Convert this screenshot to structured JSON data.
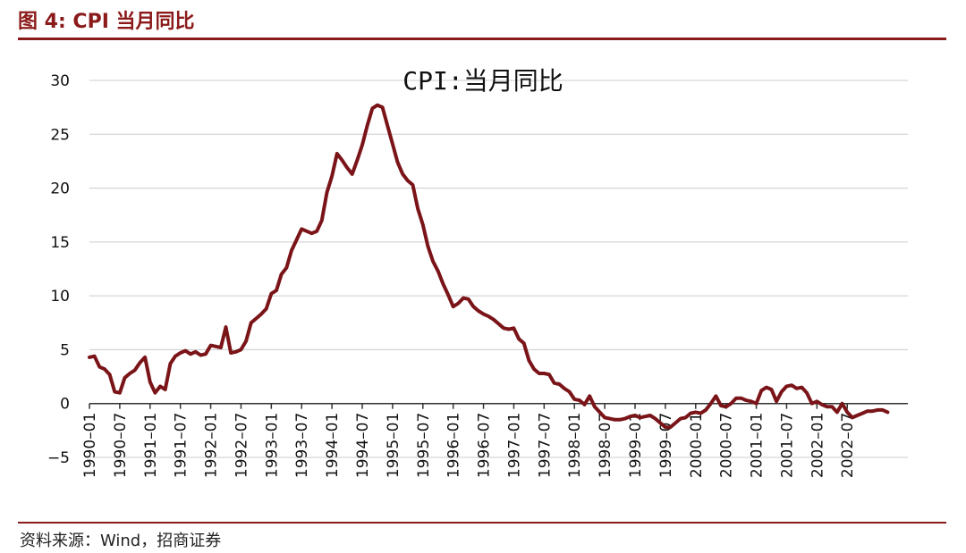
{
  "figure_title": "图 4:  CPI 当月同比",
  "source": "资料来源：Wind，招商证券",
  "colors": {
    "accent": "#8b1a1a",
    "line": "#7a1418",
    "grid": "#cccccc"
  },
  "chart_data": {
    "type": "line",
    "title": "CPI:当月同比",
    "xlabel": "",
    "ylabel": "",
    "ylim": [
      -5,
      30
    ],
    "yticks": [
      -5,
      0,
      5,
      10,
      15,
      20,
      25,
      30
    ],
    "grid": true,
    "x_tick_labels": [
      "1990-01",
      "1990-07",
      "1991-01",
      "1991-07",
      "1992-01",
      "1992-07",
      "1993-01",
      "1993-07",
      "1994-01",
      "1994-07",
      "1995-01",
      "1995-07",
      "1996-01",
      "1996-07",
      "1997-01",
      "1997-07",
      "1998-01",
      "1998-07",
      "1999-01",
      "1999-07",
      "2000-01",
      "2000-07",
      "2001-01",
      "2001-07",
      "2002-01",
      "2002-07"
    ],
    "x_start": "1990-01",
    "series": [
      {
        "values": [
          4.3,
          4.4,
          3.4,
          3.2,
          2.7,
          1.1,
          1.0,
          2.4,
          2.8,
          3.1,
          3.8,
          4.3,
          2.0,
          1.0,
          1.6,
          1.3,
          3.7,
          4.4,
          4.7,
          4.9,
          4.6,
          4.8,
          4.5,
          4.6,
          5.4,
          5.3,
          5.2,
          7.1,
          4.7,
          4.8,
          5.0,
          5.8,
          7.5,
          7.9,
          8.3,
          8.8,
          10.2,
          10.5,
          12.0,
          12.6,
          14.2,
          15.2,
          16.2,
          16.0,
          15.8,
          16.0,
          17.0,
          19.6,
          21.1,
          23.2,
          22.6,
          21.9,
          21.3,
          22.6,
          24.0,
          25.8,
          27.4,
          27.7,
          27.5,
          25.8,
          24.1,
          22.4,
          21.3,
          20.7,
          20.3,
          18.1,
          16.6,
          14.6,
          13.2,
          12.3,
          11.1,
          10.1,
          9.0,
          9.3,
          9.8,
          9.7,
          9.0,
          8.6,
          8.3,
          8.1,
          7.8,
          7.4,
          7.0,
          6.9,
          7.0,
          6.0,
          5.6,
          4.0,
          3.2,
          2.8,
          2.8,
          2.7,
          1.9,
          1.8,
          1.4,
          1.1,
          0.4,
          0.3,
          -0.1,
          0.7,
          -0.3,
          -0.8,
          -1.3,
          -1.4,
          -1.5,
          -1.5,
          -1.4,
          -1.2,
          -1.1,
          -1.3,
          -1.2,
          -1.1,
          -1.4,
          -1.8,
          -2.2,
          -2.2,
          -1.8,
          -1.4,
          -1.3,
          -0.9,
          -0.8,
          -0.9,
          -0.6,
          0.0,
          0.7,
          -0.2,
          -0.3,
          0.0,
          0.5,
          0.5,
          0.3,
          0.2,
          0.0,
          1.2,
          1.5,
          1.3,
          0.2,
          1.1,
          1.6,
          1.7,
          1.4,
          1.5,
          1.0,
          0.0,
          0.2,
          -0.1,
          -0.3,
          -0.3,
          -0.8,
          0.0,
          -0.8,
          -1.3,
          -1.1,
          -0.9,
          -0.7,
          -0.7,
          -0.6,
          -0.6,
          -0.8
        ]
      }
    ]
  }
}
